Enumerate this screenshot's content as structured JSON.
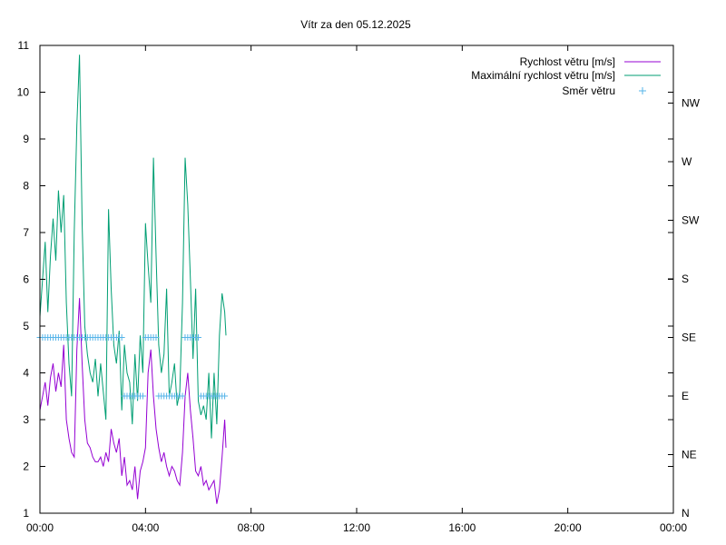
{
  "chart_data": {
    "type": "line",
    "title": "Vítr za den 05.12.2025",
    "xlabel": "",
    "ylabel": "",
    "x_ticks": [
      "00:00",
      "04:00",
      "08:00",
      "12:00",
      "16:00",
      "20:00",
      "00:00"
    ],
    "x_range_hours": [
      0,
      24
    ],
    "ylim": [
      1,
      11
    ],
    "y_ticks": [
      "1",
      "2",
      "3",
      "4",
      "5",
      "6",
      "7",
      "8",
      "9",
      "10",
      "11"
    ],
    "y2_ticks": [
      "N",
      "NE",
      "E",
      "SE",
      "S",
      "SW",
      "W",
      "NW"
    ],
    "grid": false,
    "legend_position": "top-right",
    "series": [
      {
        "name": "Rychlost větru [m/s]",
        "color": "#9400d3",
        "style": "line",
        "axis": "left",
        "x": [
          0.0,
          0.1,
          0.2,
          0.3,
          0.4,
          0.5,
          0.6,
          0.7,
          0.8,
          0.9,
          1.0,
          1.1,
          1.2,
          1.3,
          1.4,
          1.5,
          1.6,
          1.7,
          1.8,
          1.9,
          2.0,
          2.1,
          2.2,
          2.3,
          2.4,
          2.5,
          2.6,
          2.7,
          2.8,
          2.9,
          3.0,
          3.1,
          3.2,
          3.3,
          3.4,
          3.5,
          3.6,
          3.7,
          3.8,
          3.9,
          4.0,
          4.1,
          4.2,
          4.3,
          4.4,
          4.5,
          4.6,
          4.7,
          4.8,
          4.9,
          5.0,
          5.1,
          5.2,
          5.3,
          5.4,
          5.5,
          5.6,
          5.7,
          5.8,
          5.9,
          6.0,
          6.1,
          6.2,
          6.3,
          6.4,
          6.5,
          6.6,
          6.7,
          6.8,
          6.9,
          7.0,
          7.05
        ],
        "y": [
          3.2,
          3.5,
          3.8,
          3.3,
          3.9,
          4.2,
          3.6,
          4.0,
          3.7,
          4.6,
          3.0,
          2.6,
          2.3,
          2.2,
          4.5,
          5.6,
          4.2,
          3.0,
          2.5,
          2.4,
          2.2,
          2.1,
          2.1,
          2.2,
          2.0,
          2.3,
          2.1,
          2.8,
          2.5,
          2.3,
          2.6,
          1.8,
          2.2,
          1.6,
          1.7,
          1.5,
          2.0,
          1.3,
          1.9,
          2.1,
          2.4,
          4.0,
          4.5,
          3.5,
          2.8,
          2.4,
          2.1,
          2.3,
          2.0,
          1.8,
          2.0,
          1.9,
          1.7,
          1.6,
          2.3,
          3.5,
          4.0,
          3.2,
          2.6,
          1.9,
          1.8,
          2.0,
          1.6,
          1.7,
          1.5,
          1.6,
          1.7,
          1.2,
          1.5,
          2.2,
          3.0,
          2.4
        ]
      },
      {
        "name": "Maximální rychlost větru [m/s]",
        "color": "#009e73",
        "style": "line",
        "axis": "left",
        "x": [
          0.0,
          0.1,
          0.2,
          0.3,
          0.4,
          0.5,
          0.6,
          0.7,
          0.8,
          0.9,
          1.0,
          1.1,
          1.2,
          1.3,
          1.4,
          1.5,
          1.6,
          1.7,
          1.8,
          1.9,
          2.0,
          2.1,
          2.2,
          2.3,
          2.4,
          2.5,
          2.6,
          2.7,
          2.8,
          2.9,
          3.0,
          3.1,
          3.2,
          3.3,
          3.4,
          3.5,
          3.6,
          3.7,
          3.8,
          3.9,
          4.0,
          4.1,
          4.2,
          4.3,
          4.4,
          4.5,
          4.6,
          4.7,
          4.8,
          4.9,
          5.0,
          5.1,
          5.2,
          5.3,
          5.4,
          5.5,
          5.6,
          5.7,
          5.8,
          5.9,
          6.0,
          6.1,
          6.2,
          6.3,
          6.4,
          6.5,
          6.6,
          6.7,
          6.8,
          6.9,
          7.0,
          7.05
        ],
        "y": [
          5.2,
          6.0,
          6.8,
          5.3,
          6.5,
          7.3,
          6.4,
          7.9,
          7.0,
          7.8,
          5.5,
          4.2,
          3.5,
          7.0,
          9.3,
          10.8,
          7.2,
          5.0,
          4.4,
          4.0,
          3.8,
          4.3,
          3.5,
          4.2,
          3.6,
          3.0,
          7.5,
          5.8,
          4.6,
          4.2,
          4.9,
          3.2,
          4.6,
          4.0,
          3.8,
          2.9,
          4.4,
          3.4,
          4.8,
          4.0,
          7.2,
          6.3,
          5.5,
          8.6,
          6.5,
          4.6,
          4.0,
          4.4,
          5.8,
          3.5,
          3.8,
          4.2,
          3.3,
          3.6,
          5.5,
          8.6,
          7.6,
          6.0,
          4.3,
          5.8,
          3.4,
          3.1,
          3.3,
          3.0,
          4.0,
          2.6,
          4.0,
          2.9,
          4.8,
          5.7,
          5.3,
          4.8
        ]
      },
      {
        "name": "Směr větru",
        "color": "#56b4e9",
        "style": "points",
        "axis": "right",
        "x": [
          0.0,
          0.1,
          0.2,
          0.3,
          0.4,
          0.5,
          0.6,
          0.7,
          0.8,
          0.9,
          1.0,
          1.1,
          1.2,
          1.3,
          1.4,
          1.5,
          1.6,
          1.7,
          1.8,
          1.9,
          2.0,
          2.1,
          2.2,
          2.3,
          2.4,
          2.5,
          2.6,
          2.7,
          2.8,
          2.9,
          3.0,
          3.1,
          3.2,
          3.3,
          3.4,
          3.5,
          3.6,
          3.7,
          3.8,
          3.9,
          4.0,
          4.1,
          4.2,
          4.3,
          4.4,
          4.5,
          4.6,
          4.7,
          4.8,
          4.9,
          5.0,
          5.1,
          5.2,
          5.3,
          5.4,
          5.5,
          5.6,
          5.7,
          5.8,
          5.9,
          6.0,
          6.1,
          6.2,
          6.3,
          6.4,
          6.5,
          6.6,
          6.7,
          6.8,
          6.9,
          7.0
        ],
        "y": [
          "SE",
          "SE",
          "SE",
          "SE",
          "SE",
          "SE",
          "SE",
          "SE",
          "SE",
          "SE",
          "SE",
          "SE",
          "SE",
          "SE",
          "SE",
          "SE",
          "SE",
          "SE",
          "SE",
          "SE",
          "SE",
          "SE",
          "SE",
          "SE",
          "SE",
          "SE",
          "SE",
          "SE",
          "SE",
          "SE",
          "SE",
          "SE",
          "E",
          "E",
          "E",
          "E",
          "E",
          "E",
          "E",
          "E",
          "SE",
          "SE",
          "SE",
          "SE",
          "SE",
          "E",
          "E",
          "E",
          "E",
          "E",
          "E",
          "E",
          "E",
          "E",
          "E",
          "SE",
          "SE",
          "SE",
          "SE",
          "SE",
          "SE",
          "E",
          "E",
          "E",
          "E",
          "E",
          "E",
          "E",
          "E",
          "E",
          "E"
        ]
      }
    ]
  }
}
